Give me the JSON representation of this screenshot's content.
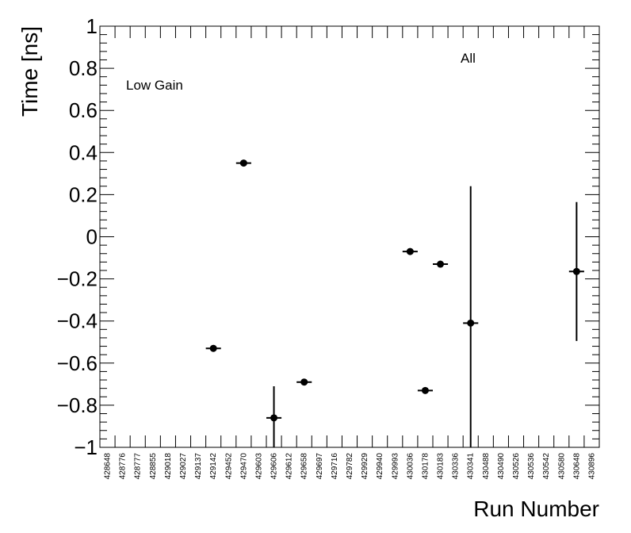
{
  "chart_data": {
    "type": "scatter",
    "xlabel": "Run Number",
    "ylabel": "Time [ns]",
    "ylim": [
      -1,
      1
    ],
    "yticks": [
      "1",
      "0.8",
      "0.6",
      "0.4",
      "0.2",
      "0",
      "−0.2",
      "−0.4",
      "−0.6",
      "−0.8",
      "−1"
    ],
    "ytick_values": [
      1,
      0.8,
      0.6,
      0.4,
      0.2,
      0,
      -0.2,
      -0.4,
      -0.6,
      -0.8,
      -1
    ],
    "categories": [
      "428648",
      "428776",
      "428777",
      "428855",
      "429018",
      "429027",
      "429137",
      "429142",
      "429452",
      "429470",
      "429603",
      "429606",
      "429612",
      "429658",
      "429697",
      "429716",
      "429782",
      "429929",
      "429940",
      "429993",
      "430036",
      "430178",
      "430183",
      "430336",
      "430341",
      "430488",
      "430490",
      "430526",
      "430536",
      "430542",
      "430580",
      "430648",
      "430896"
    ],
    "points": [
      {
        "run": "429142",
        "y": -0.53,
        "err": 0.0
      },
      {
        "run": "429470",
        "y": 0.35,
        "err": 0.0
      },
      {
        "run": "429606",
        "y": -0.86,
        "err": 0.15
      },
      {
        "run": "429658",
        "y": -0.69,
        "err": 0.0
      },
      {
        "run": "430036",
        "y": -0.07,
        "err": 0.0
      },
      {
        "run": "430178",
        "y": -0.73,
        "err": 0.0
      },
      {
        "run": "430183",
        "y": -0.13,
        "err": 0.0
      },
      {
        "run": "430341",
        "y": -0.41,
        "err": 0.65
      },
      {
        "run": "430648",
        "y": -0.165,
        "err": 0.33
      }
    ],
    "annotations": [
      "Low Gain",
      "All"
    ],
    "grid": false,
    "marker_color": "#000000"
  }
}
